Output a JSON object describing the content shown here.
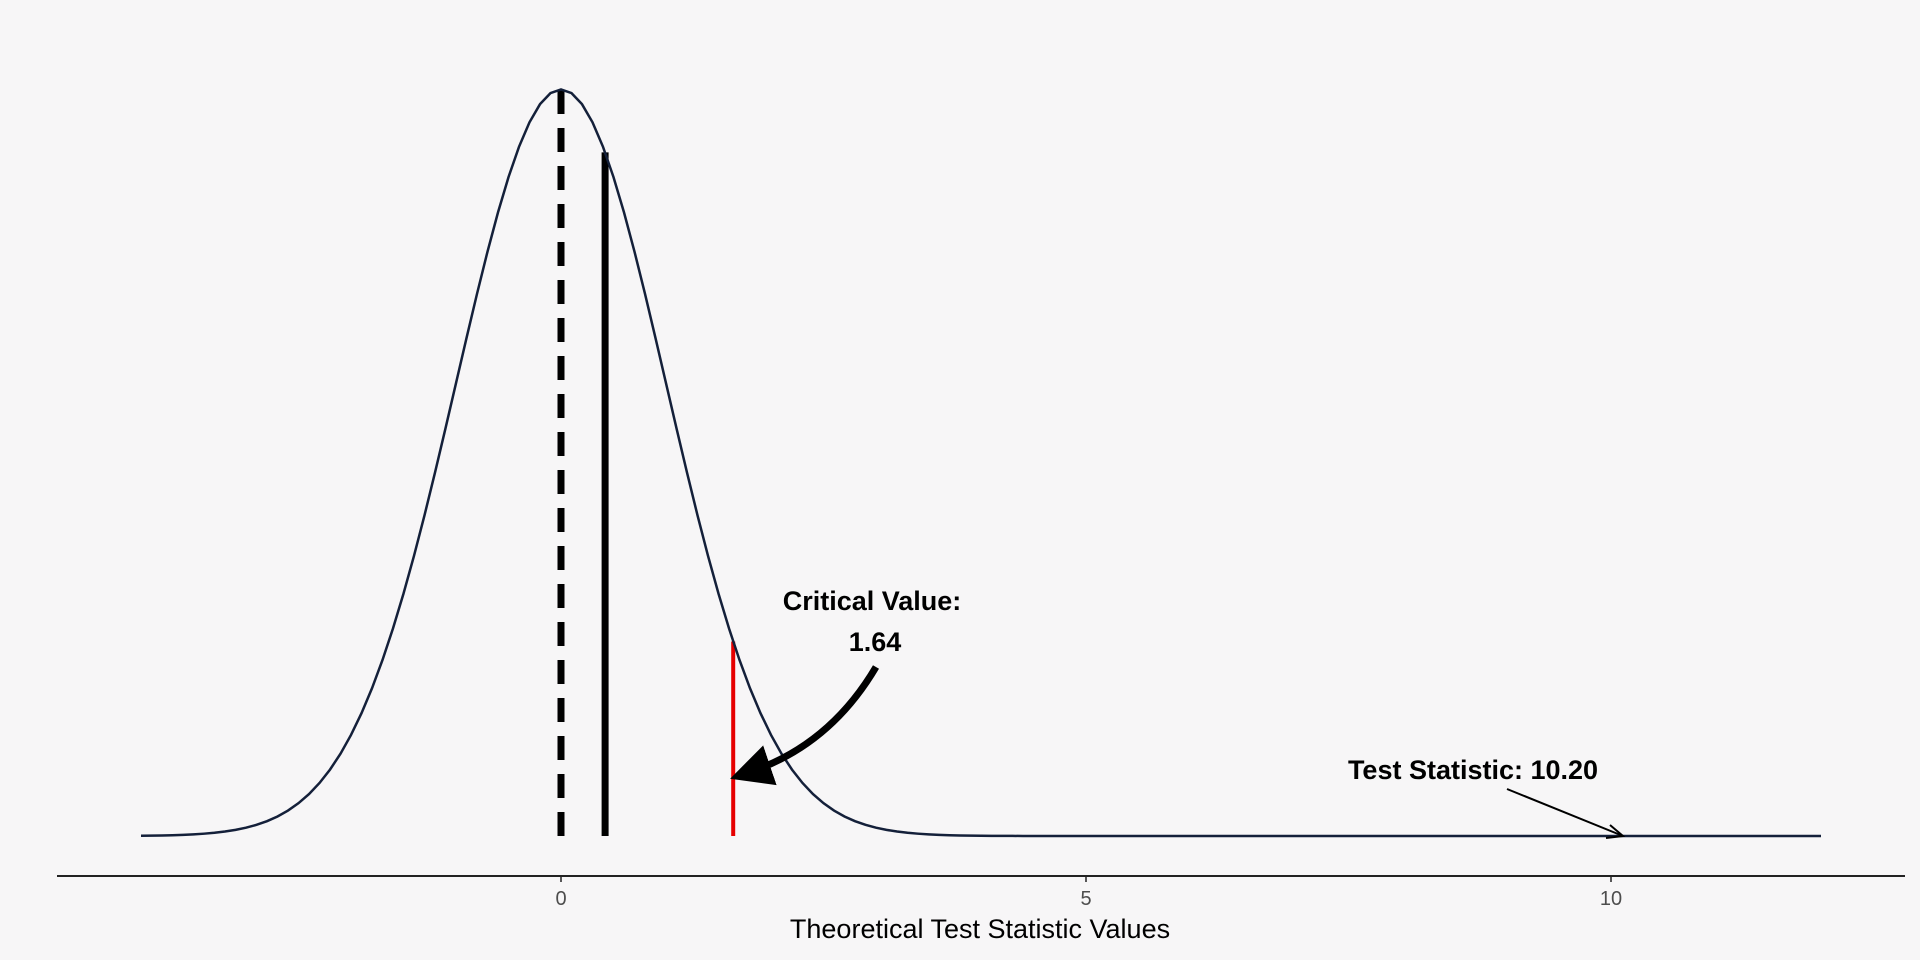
{
  "colors": {
    "background": "#f7f6f7",
    "curve": "#14203a",
    "critical_line": "#e60000",
    "reference_lines": "#000000",
    "axis": "#222222"
  },
  "chart_data": {
    "type": "line",
    "title": "",
    "xlabel": "Theoretical Test Statistic Values",
    "ylabel": "",
    "xlim": [
      -4.8,
      12.8
    ],
    "ylim": [
      0,
      0.42
    ],
    "x_ticks": [
      0,
      5,
      10
    ],
    "x_tick_labels": [
      "0",
      "5",
      "10"
    ],
    "grid": false,
    "legend": "none",
    "series": [
      {
        "distribution": "standard normal density",
        "x_range": [
          -4,
          12
        ],
        "step": 0.1
      }
    ],
    "reference_lines": [
      {
        "x": 0,
        "style": "dashed",
        "color": "#000000"
      },
      {
        "x": 0.42,
        "style": "solid",
        "color": "#000000"
      },
      {
        "x": 1.64,
        "style": "solid",
        "color": "#e60000"
      }
    ],
    "annotations": [
      {
        "text_line1": "Critical Value:",
        "text_line2": "1.64",
        "x": 1.64,
        "y": 0.104
      },
      {
        "text": "Test Statistic: 10.20",
        "x": 10.2,
        "y": 0
      }
    ]
  }
}
